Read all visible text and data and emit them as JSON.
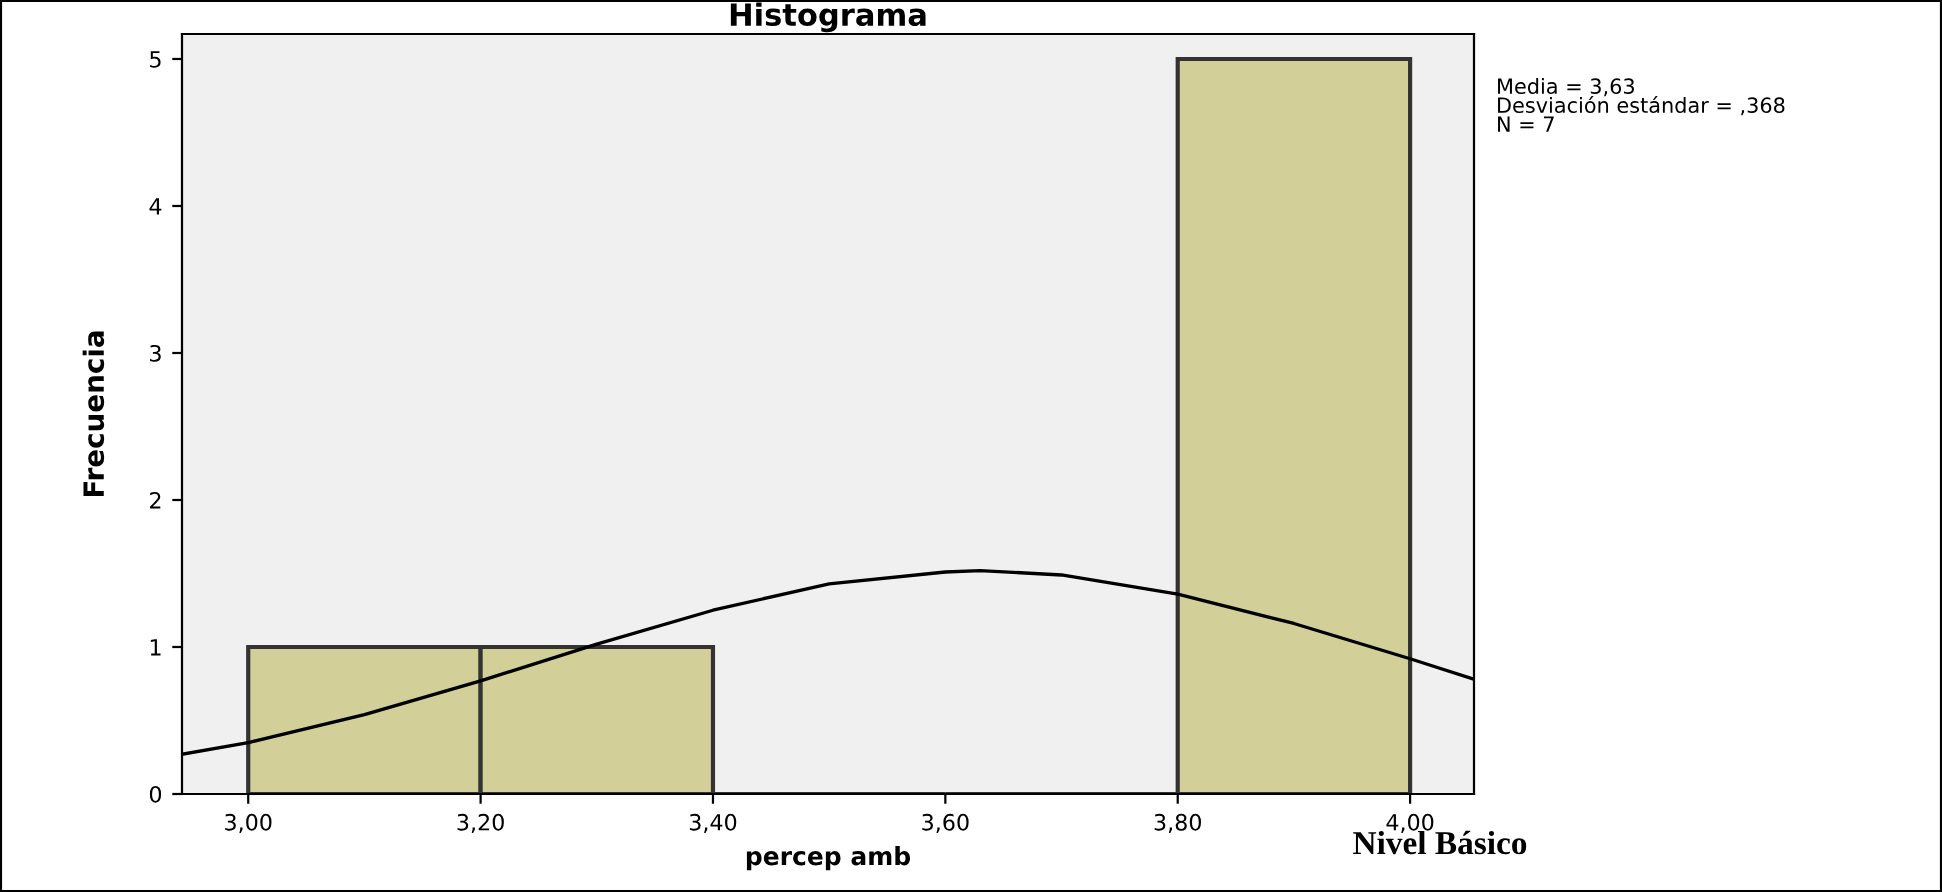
{
  "chart_data": {
    "type": "histogram",
    "title": "Histograma",
    "xlabel": "percep amb",
    "ylabel": "Frecuencia",
    "bins": [
      3.0,
      3.2,
      3.4,
      3.6,
      3.8,
      4.0
    ],
    "values": [
      1,
      1,
      0,
      0,
      5
    ],
    "color": "#d3cf98",
    "series": [
      {
        "type": "line",
        "color": "#000000",
        "x": [
          2.943,
          3.0,
          3.1,
          3.2,
          3.3,
          3.4,
          3.5,
          3.6,
          3.63,
          3.7,
          3.8,
          3.9,
          4.0,
          4.055
        ],
        "values": [
          0.27,
          0.35,
          0.54,
          0.77,
          1.02,
          1.25,
          1.43,
          1.51,
          1.52,
          1.49,
          1.36,
          1.16,
          0.92,
          0.78
        ]
      }
    ],
    "xlim": [
      2.943,
      4.055
    ],
    "xticks": [
      {
        "value": 3.0,
        "label": "3,00"
      },
      {
        "value": 3.2,
        "label": "3,20"
      },
      {
        "value": 3.4,
        "label": "3,40"
      },
      {
        "value": 3.6,
        "label": "3,60"
      },
      {
        "value": 3.8,
        "label": "3,80"
      },
      {
        "value": 4.0,
        "label": "4,00"
      }
    ],
    "ylim": [
      0,
      5.17
    ],
    "yticks": [
      0,
      1,
      2,
      3,
      4,
      5
    ],
    "grid": false,
    "annotations": [
      "Media = 3,63",
      "Desviación estándar = ,368",
      "N = 7",
      "Nivel Básico"
    ]
  }
}
